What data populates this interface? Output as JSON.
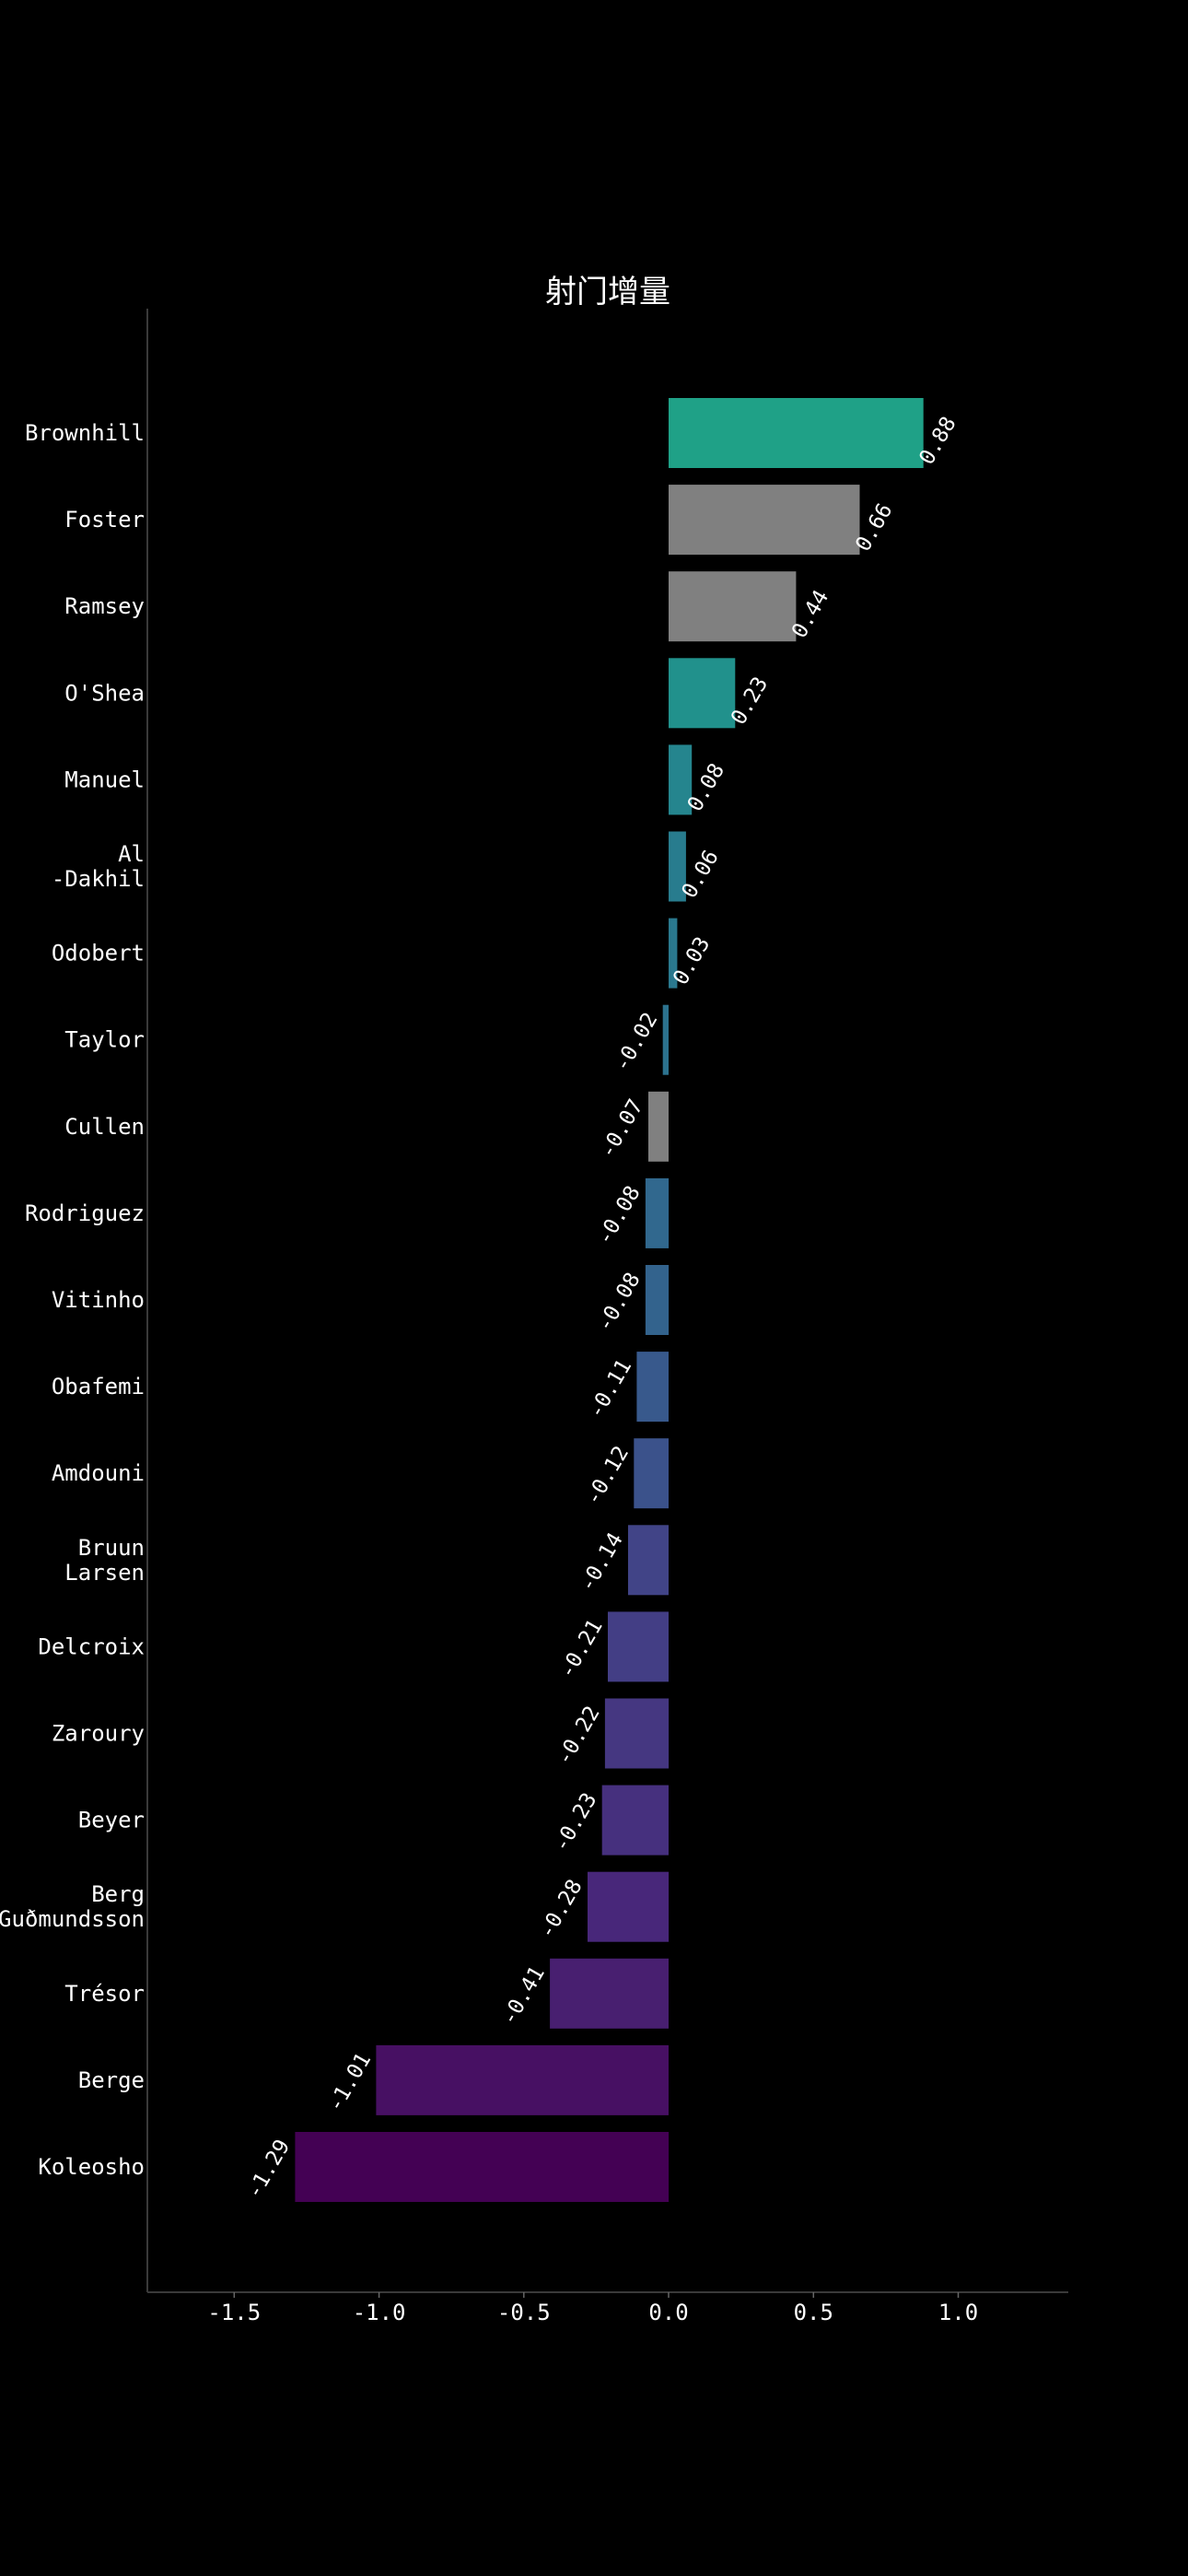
{
  "chart_data": {
    "type": "bar",
    "orientation": "horizontal",
    "title": "射门增量",
    "xlabel": "",
    "ylabel": "",
    "xlim": [
      -1.8,
      1.38
    ],
    "x_ticks": [
      -1.5,
      -1.0,
      -0.5,
      0.0,
      0.5,
      1.0
    ],
    "x_tick_labels": [
      "-1.5",
      "-1.0",
      "-0.5",
      "0.0",
      "0.5",
      "1.0"
    ],
    "grid": false,
    "categories": [
      [
        "Brownhill"
      ],
      [
        "Foster"
      ],
      [
        "Ramsey"
      ],
      [
        "O'Shea"
      ],
      [
        "Manuel"
      ],
      [
        "Al",
        "-Dakhil"
      ],
      [
        "Odobert"
      ],
      [
        "Taylor"
      ],
      [
        "Cullen"
      ],
      [
        "Rodriguez"
      ],
      [
        "Vitinho"
      ],
      [
        "Obafemi"
      ],
      [
        "Amdouni"
      ],
      [
        "Bruun",
        "Larsen"
      ],
      [
        "Delcroix"
      ],
      [
        "Zaroury"
      ],
      [
        "Beyer"
      ],
      [
        "Berg",
        "Guðmundsson"
      ],
      [
        "Trésor"
      ],
      [
        "Berge"
      ],
      [
        "Koleosho"
      ]
    ],
    "values": [
      0.88,
      0.66,
      0.44,
      0.23,
      0.08,
      0.06,
      0.03,
      -0.02,
      -0.07,
      -0.08,
      -0.08,
      -0.11,
      -0.12,
      -0.14,
      -0.21,
      -0.22,
      -0.23,
      -0.28,
      -0.41,
      -1.01,
      -1.29
    ],
    "value_labels": [
      "0.88",
      "0.66",
      "0.44",
      "0.23",
      "0.08",
      "0.06",
      "0.03",
      "-0.02",
      "-0.07",
      "-0.08",
      "-0.08",
      "-0.11",
      "-0.12",
      "-0.14",
      "-0.21",
      "-0.22",
      "-0.23",
      "-0.28",
      "-0.41",
      "-1.01",
      "-1.29"
    ],
    "colors": [
      "#1fa187",
      "#808080",
      "#808080",
      "#21918c",
      "#25858e",
      "#287c8e",
      "#2a788e",
      "#2c728e",
      "#808080",
      "#31688e",
      "#33638d",
      "#38598c",
      "#3b528b",
      "#414487",
      "#433e85",
      "#453781",
      "#46307e",
      "#48277a",
      "#481f70",
      "#471063",
      "#440154"
    ]
  }
}
